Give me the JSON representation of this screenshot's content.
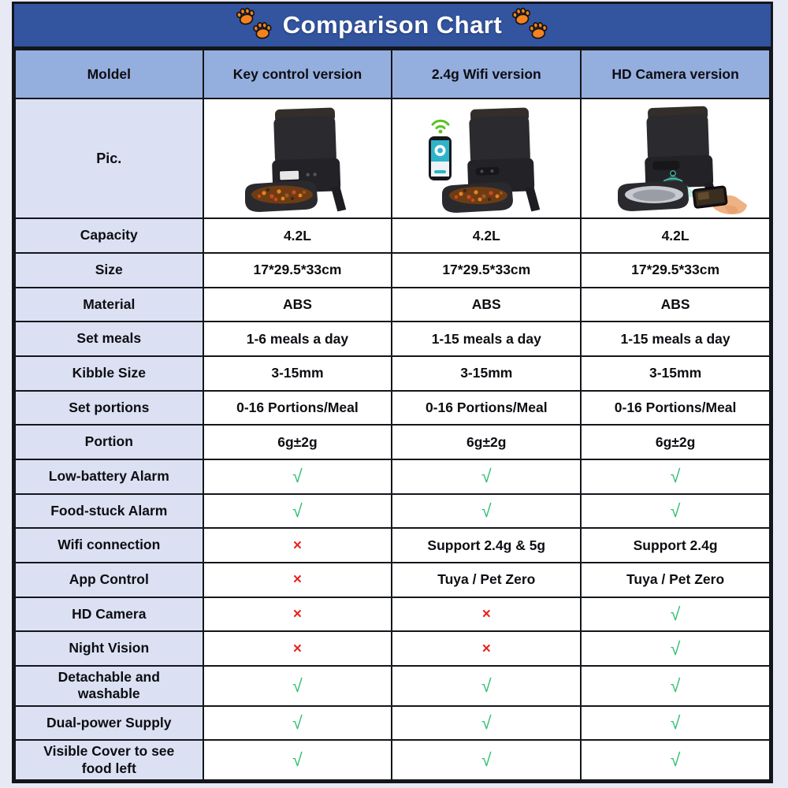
{
  "title": {
    "text": "Comparison Chart"
  },
  "icons": {
    "check": "√",
    "cross": "×",
    "paw": "paw-print"
  },
  "colors": {
    "title_bar_blue": "#33549f",
    "header_row_blue": "#94aede",
    "label_cell_blue": "#dbe1f3",
    "check_green": "#2fbf71",
    "cross_red": "#e8231f",
    "paw_orange": "#f5821f"
  },
  "header": {
    "columns": [
      "Moldel",
      "Key control version",
      "2.4g Wifi version",
      "HD Camera version"
    ]
  },
  "pic_row": {
    "label": "Pic.",
    "images": [
      "key-control-feeder-image",
      "wifi-feeder-with-phone-image",
      "camera-feeder-with-hand-phone-image"
    ]
  },
  "rows": [
    {
      "label": "Capacity",
      "values": [
        {
          "type": "text",
          "value": "4.2L"
        },
        {
          "type": "text",
          "value": "4.2L"
        },
        {
          "type": "text",
          "value": "4.2L"
        }
      ]
    },
    {
      "label": "Size",
      "values": [
        {
          "type": "text",
          "value": "17*29.5*33cm"
        },
        {
          "type": "text",
          "value": "17*29.5*33cm"
        },
        {
          "type": "text",
          "value": "17*29.5*33cm"
        }
      ]
    },
    {
      "label": "Material",
      "values": [
        {
          "type": "text",
          "value": "ABS"
        },
        {
          "type": "text",
          "value": "ABS"
        },
        {
          "type": "text",
          "value": "ABS"
        }
      ]
    },
    {
      "label": "Set meals",
      "values": [
        {
          "type": "text",
          "value": "1-6 meals a day"
        },
        {
          "type": "text",
          "value": "1-15 meals a day"
        },
        {
          "type": "text",
          "value": "1-15 meals a day"
        }
      ]
    },
    {
      "label": "Kibble Size",
      "values": [
        {
          "type": "text",
          "value": "3-15mm"
        },
        {
          "type": "text",
          "value": "3-15mm"
        },
        {
          "type": "text",
          "value": "3-15mm"
        }
      ]
    },
    {
      "label": "Set portions",
      "values": [
        {
          "type": "text",
          "value": "0-16 Portions/Meal"
        },
        {
          "type": "text",
          "value": "0-16 Portions/Meal"
        },
        {
          "type": "text",
          "value": "0-16 Portions/Meal"
        }
      ]
    },
    {
      "label": "Portion",
      "values": [
        {
          "type": "text",
          "value": "6g±2g"
        },
        {
          "type": "text",
          "value": "6g±2g"
        },
        {
          "type": "text",
          "value": "6g±2g"
        }
      ]
    },
    {
      "label": "Low-battery Alarm",
      "values": [
        {
          "type": "check"
        },
        {
          "type": "check"
        },
        {
          "type": "check"
        }
      ]
    },
    {
      "label": "Food-stuck Alarm",
      "values": [
        {
          "type": "check"
        },
        {
          "type": "check"
        },
        {
          "type": "check"
        }
      ]
    },
    {
      "label": "Wifi connection",
      "values": [
        {
          "type": "cross"
        },
        {
          "type": "text",
          "value": "Support 2.4g & 5g"
        },
        {
          "type": "text",
          "value": "Support 2.4g"
        }
      ]
    },
    {
      "label": "App Control",
      "values": [
        {
          "type": "cross"
        },
        {
          "type": "text",
          "value": "Tuya / Pet Zero"
        },
        {
          "type": "text",
          "value": "Tuya / Pet Zero"
        }
      ]
    },
    {
      "label": "HD Camera",
      "values": [
        {
          "type": "cross"
        },
        {
          "type": "cross"
        },
        {
          "type": "check"
        }
      ]
    },
    {
      "label": "Night Vision",
      "values": [
        {
          "type": "cross"
        },
        {
          "type": "cross"
        },
        {
          "type": "check"
        }
      ]
    },
    {
      "label": "Detachable and washable",
      "values": [
        {
          "type": "check"
        },
        {
          "type": "check"
        },
        {
          "type": "check"
        }
      ]
    },
    {
      "label": "Dual-power Supply",
      "values": [
        {
          "type": "check"
        },
        {
          "type": "check"
        },
        {
          "type": "check"
        }
      ]
    },
    {
      "label": "Visible Cover to see food left",
      "values": [
        {
          "type": "check"
        },
        {
          "type": "check"
        },
        {
          "type": "check"
        }
      ]
    }
  ]
}
